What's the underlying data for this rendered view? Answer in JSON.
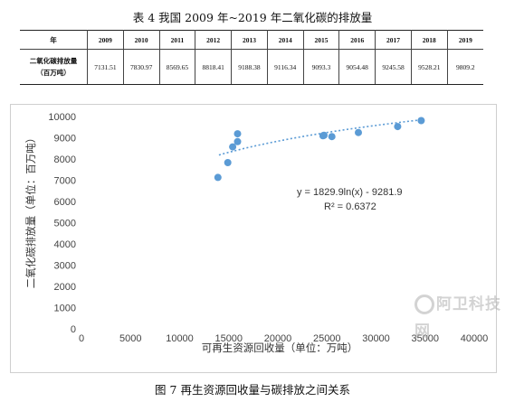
{
  "table": {
    "title": "表 4  我国 2009 年~2019 年二氧化碳的排放量",
    "header_label": "年",
    "years": [
      "2009",
      "2010",
      "2011",
      "2012",
      "2013",
      "2014",
      "2015",
      "2016",
      "2017",
      "2018",
      "2019"
    ],
    "row_label_line1": "二氧化碳排放量",
    "row_label_line2": "（百万吨）",
    "values": [
      "7131.51",
      "7830.97",
      "8569.65",
      "8818.41",
      "9188.38",
      "9116.34",
      "9093.3",
      "9054.48",
      "9245.58",
      "9528.21",
      "9809.2"
    ]
  },
  "chart_data": {
    "type": "scatter",
    "xlabel": "可再生资源回收量（单位：万吨）",
    "ylabel": "二氧化碳排放量（单位：百万吨）",
    "xlim": [
      0,
      40000
    ],
    "ylim": [
      0,
      10000
    ],
    "x_ticks": [
      "0",
      "5000",
      "10000",
      "15000",
      "20000",
      "25000",
      "30000",
      "35000",
      "40000"
    ],
    "y_ticks": [
      "0",
      "1000",
      "2000",
      "3000",
      "4000",
      "5000",
      "6000",
      "7000",
      "8000",
      "9000",
      "10000"
    ],
    "points": [
      {
        "x": 13900,
        "y": 7131.51
      },
      {
        "x": 14900,
        "y": 7830.97
      },
      {
        "x": 15400,
        "y": 8569.65
      },
      {
        "x": 15900,
        "y": 8818.41
      },
      {
        "x": 15900,
        "y": 9188.38
      },
      {
        "x": 24700,
        "y": 9116.34
      },
      {
        "x": 24600,
        "y": 9093.3
      },
      {
        "x": 25500,
        "y": 9054.48
      },
      {
        "x": 28200,
        "y": 9245.58
      },
      {
        "x": 32200,
        "y": 9528.21
      },
      {
        "x": 34600,
        "y": 9809.2
      }
    ],
    "trendline": {
      "type": "logarithmic",
      "a": 1829.9,
      "b": -9281.9,
      "x_from": 14000,
      "x_to": 34600
    },
    "equation_label": "y = 1829.9ln(x) - 9281.9",
    "r2_label": "R² = 0.6372",
    "grid": false,
    "colors": {
      "points": "#5b9bd5",
      "trendline": "#5b9bd5"
    }
  },
  "watermark": "阿卫科技网",
  "caption": "图 7  再生资源回收量与碳排放之间关系"
}
